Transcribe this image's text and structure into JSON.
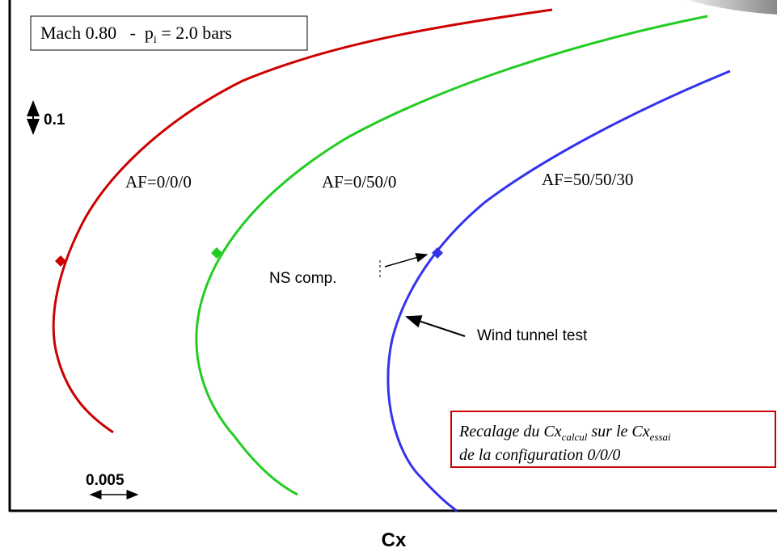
{
  "header": {
    "box": {
      "prefix": "Mach 0.80   -  p",
      "subscript": "i",
      "suffix": " = 2.0 bars"
    }
  },
  "curves": [
    {
      "label": "AF=0/0/0"
    },
    {
      "label": "AF=0/50/0"
    },
    {
      "label": "AF=50/50/30"
    }
  ],
  "annotations": {
    "ns": "NS comp.",
    "wind": "Wind tunnel test"
  },
  "scale": {
    "vertical": "0.1",
    "horizontal": "0.005"
  },
  "axis": {
    "x_label": "Cx"
  },
  "note": {
    "line1_a": "Recalage du Cx",
    "line1_sub1": "calcul",
    "line1_b": " sur le Cx",
    "line1_sub2": "essai",
    "line2": "de la configuration 0/0/0"
  }
}
